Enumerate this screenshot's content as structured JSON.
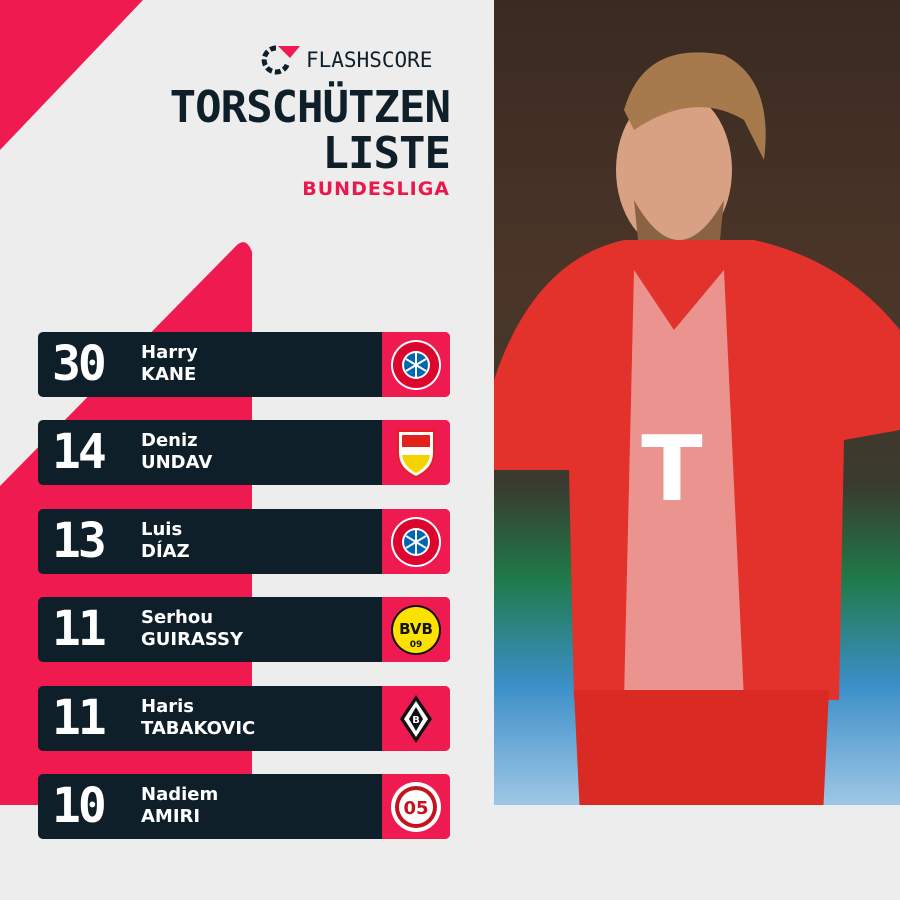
{
  "brand": {
    "name": "FLASHSCORE"
  },
  "header": {
    "title_line1": "TORSCHÜTZEN",
    "title_line2": "LISTE",
    "league": "BUNDESLIGA"
  },
  "colors": {
    "accent": "#ef1a4f",
    "dark": "#0f1f29",
    "background": "#eeeded"
  },
  "scorers": [
    {
      "goals": "30",
      "first": "Harry",
      "last": "KANE",
      "club_icon": "bayern-munich-crest-icon"
    },
    {
      "goals": "14",
      "first": "Deniz",
      "last": "UNDAV",
      "club_icon": "vfb-stuttgart-crest-icon"
    },
    {
      "goals": "13",
      "first": "Luis",
      "last": "DÍAZ",
      "club_icon": "bayern-munich-crest-icon"
    },
    {
      "goals": "11",
      "first": "Serhou",
      "last": "GUIRASSY",
      "club_icon": "borussia-dortmund-crest-icon"
    },
    {
      "goals": "11",
      "first": "Haris",
      "last": "TABAKOVIC",
      "club_icon": "borussia-monchengladbach-crest-icon"
    },
    {
      "goals": "10",
      "first": "Nadiem",
      "last": "AMIRI",
      "club_icon": "mainz-05-crest-icon"
    }
  ]
}
